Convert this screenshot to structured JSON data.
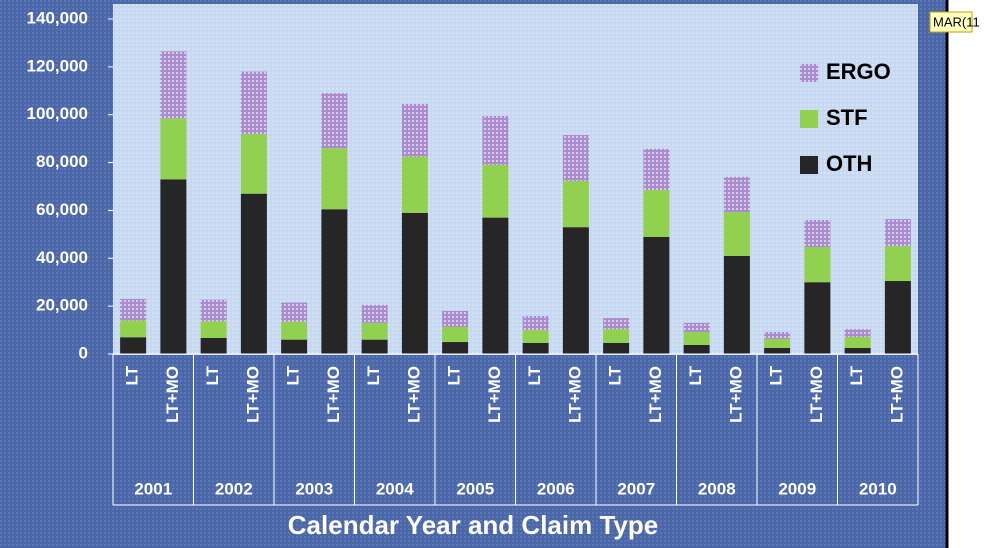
{
  "chart_data": {
    "type": "bar",
    "stacked": true,
    "categories": [
      "LT",
      "LT+MO",
      "LT",
      "LT+MO",
      "LT",
      "LT+MO",
      "LT",
      "LT+MO",
      "LT",
      "LT+MO",
      "LT",
      "LT+MO",
      "LT",
      "LT+MO",
      "LT",
      "LT+MO",
      "LT",
      "LT+MO",
      "LT",
      "LT+MO"
    ],
    "groups": [
      "2001",
      "2002",
      "2003",
      "2004",
      "2005",
      "2006",
      "2007",
      "2008",
      "2009",
      "2010"
    ],
    "x_label": "Calendar Year and Claim Type",
    "annotation": "MAR(11",
    "series": [
      {
        "name": "OTH",
        "color": "#262626",
        "values": [
          7000,
          73000,
          6700,
          67000,
          6000,
          60500,
          6000,
          59000,
          5000,
          57000,
          4600,
          53000,
          4600,
          48900,
          3800,
          41000,
          2500,
          30000,
          2500,
          30500
        ]
      },
      {
        "name": "STF",
        "color": "#92d050",
        "values": [
          7000,
          25500,
          7000,
          25000,
          7500,
          25500,
          7000,
          23500,
          6300,
          22000,
          5400,
          19300,
          5800,
          19600,
          5400,
          18300,
          3800,
          14700,
          4600,
          14600
        ]
      },
      {
        "name": "ERGO",
        "color": "#a98ccc",
        "values": [
          9000,
          28000,
          9000,
          26000,
          8000,
          23000,
          7500,
          22000,
          6700,
          20500,
          5900,
          19200,
          4600,
          17200,
          3800,
          14700,
          2900,
          11300,
          3300,
          11300
        ]
      }
    ],
    "ylim": [
      0,
      140000
    ],
    "yticks": [
      0,
      {
        "value": 20000,
        "label": "20,000"
      },
      {
        "value": 40000,
        "label": "40,000"
      },
      {
        "value": 60000,
        "label": "60,000"
      },
      {
        "value": 80000,
        "label": "80,000"
      },
      {
        "value": 100000,
        "label": "100,000"
      },
      {
        "value": 120000,
        "label": "120,000"
      },
      {
        "value": 140000,
        "label": "140,000"
      }
    ],
    "legend": "upper right"
  }
}
